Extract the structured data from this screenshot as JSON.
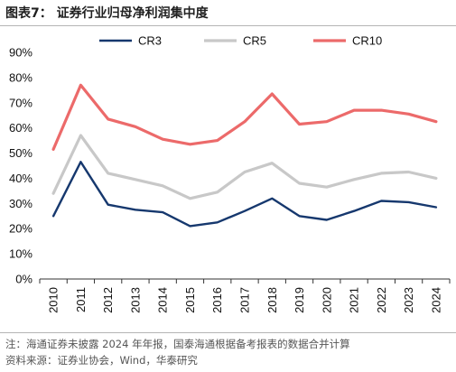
{
  "title": "图表7：  证券行业归母净利润集中度",
  "chart_data": {
    "type": "line",
    "title": "图表7：  证券行业归母净利润集中度",
    "xlabel": "",
    "ylabel": "",
    "categories": [
      "2010",
      "2011",
      "2012",
      "2013",
      "2014",
      "2015",
      "2016",
      "2017",
      "2018",
      "2019",
      "2020",
      "2021",
      "2022",
      "2023",
      "2024"
    ],
    "ylim": [
      0,
      90
    ],
    "yticks": [
      "0%",
      "10%",
      "20%",
      "30%",
      "40%",
      "50%",
      "60%",
      "70%",
      "80%",
      "90%"
    ],
    "grid": false,
    "legend_position": "top",
    "series": [
      {
        "name": "CR3",
        "color": "#16386e",
        "values": [
          25.0,
          46.5,
          29.5,
          27.5,
          26.5,
          21.0,
          22.5,
          27.0,
          32.0,
          25.0,
          23.5,
          27.0,
          31.0,
          30.5,
          28.5
        ]
      },
      {
        "name": "CR5",
        "color": "#c8c8c8",
        "values": [
          34.0,
          57.0,
          42.0,
          39.5,
          37.0,
          32.0,
          34.5,
          42.5,
          46.0,
          38.0,
          36.5,
          39.5,
          42.0,
          42.5,
          40.0
        ]
      },
      {
        "name": "CR10",
        "color": "#ec6a6a",
        "values": [
          51.5,
          77.0,
          63.5,
          60.5,
          55.5,
          53.5,
          55.0,
          62.5,
          73.5,
          61.5,
          62.5,
          67.0,
          67.0,
          65.5,
          62.5
        ]
      }
    ]
  },
  "footnote": {
    "line1": "注：海通证券未披露 2024 年年报，国泰海通根据备考报表的数据合并计算",
    "line2": "资料来源：证券业协会，Wind，华泰研究"
  }
}
